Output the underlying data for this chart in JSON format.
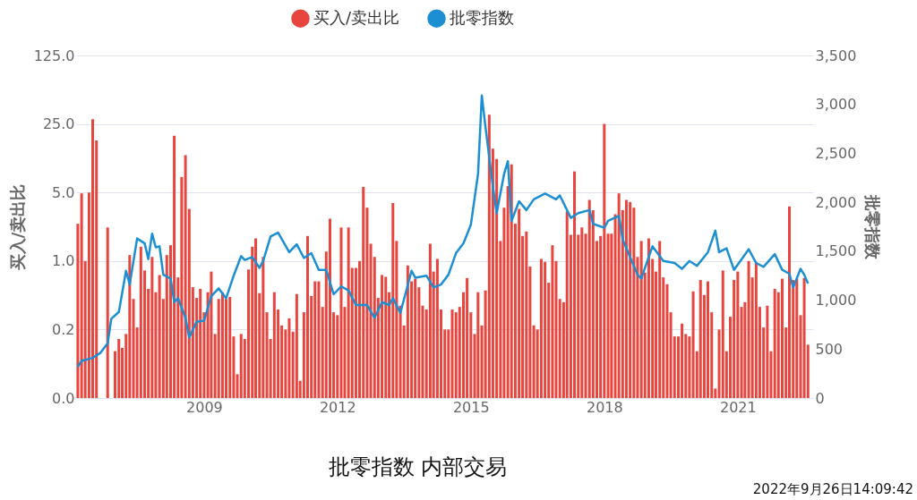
{
  "chart_data": {
    "type": "bar",
    "title": "批零指数 内部交易",
    "annotations": [
      "2022年9月26日14:09:42"
    ],
    "ylabel": "买入/卖出比",
    "y2label": "批零指数",
    "log": "y",
    "grid": "y",
    "legend": "top",
    "xlim": [
      "2006-02-15",
      "2022-09-12"
    ],
    "xticks": [
      "2009",
      "2012",
      "2015",
      "2018",
      "2021"
    ],
    "ylim": [
      0.04,
      125
    ],
    "yticks": [
      {
        "value": 0.04,
        "label": "0.0"
      },
      0.2,
      {
        "value": 1,
        "label": "1.0"
      },
      {
        "value": 5,
        "label": "5.0"
      },
      {
        "value": 25,
        "label": "25.0"
      },
      {
        "value": 125,
        "label": "125.0"
      }
    ],
    "y2lim": [
      0,
      3500
    ],
    "y2ticks": [
      0,
      500,
      {
        "value": 1000,
        "label": "1,000"
      },
      {
        "value": 1500,
        "label": "1,500"
      },
      {
        "value": 2000,
        "label": "2,000"
      },
      {
        "value": 2500,
        "label": "2,500"
      },
      {
        "value": 3000,
        "label": "3,000"
      },
      {
        "value": 3500,
        "label": "3,500"
      }
    ],
    "x": [
      "2006-03",
      "2006-04",
      "2006-05",
      "2006-06",
      "2006-07",
      "2006-08",
      "2006-09",
      "2006-10",
      "2006-11",
      "2006-12",
      "2007-01",
      "2007-02",
      "2007-03",
      "2007-04",
      "2007-05",
      "2007-06",
      "2007-07",
      "2007-08",
      "2007-09",
      "2007-10",
      "2007-11",
      "2007-12",
      "2008-01",
      "2008-02",
      "2008-03",
      "2008-04",
      "2008-05",
      "2008-06",
      "2008-07",
      "2008-08",
      "2008-09",
      "2008-10",
      "2008-11",
      "2008-12",
      "2009-01",
      "2009-02",
      "2009-03",
      "2009-04",
      "2009-05",
      "2009-06",
      "2009-07",
      "2009-08",
      "2009-09",
      "2009-10",
      "2009-11",
      "2009-12",
      "2010-01",
      "2010-02",
      "2010-03",
      "2010-04",
      "2010-05",
      "2010-06",
      "2010-07",
      "2010-08",
      "2010-09",
      "2010-10",
      "2010-11",
      "2010-12",
      "2011-01",
      "2011-02",
      "2011-03",
      "2011-04",
      "2011-05",
      "2011-06",
      "2011-07",
      "2011-08",
      "2011-09",
      "2011-10",
      "2011-11",
      "2011-12",
      "2012-01",
      "2012-02",
      "2012-03",
      "2012-04",
      "2012-05",
      "2012-06",
      "2012-07",
      "2012-08",
      "2012-09",
      "2012-10",
      "2012-11",
      "2012-12",
      "2013-01",
      "2013-02",
      "2013-03",
      "2013-04",
      "2013-05",
      "2013-06",
      "2013-07",
      "2013-08",
      "2013-09",
      "2013-10",
      "2013-11",
      "2013-12",
      "2014-01",
      "2014-02",
      "2014-03",
      "2014-04",
      "2014-05",
      "2014-06",
      "2014-07",
      "2014-08",
      "2014-09",
      "2014-10",
      "2014-11",
      "2014-12",
      "2015-01",
      "2015-02",
      "2015-03",
      "2015-04",
      "2015-05",
      "2015-06",
      "2015-07",
      "2015-08",
      "2015-09",
      "2015-10",
      "2015-11",
      "2015-12",
      "2016-01",
      "2016-02",
      "2016-03",
      "2016-04",
      "2016-05",
      "2016-06",
      "2016-07",
      "2016-08",
      "2016-09",
      "2016-10",
      "2016-11",
      "2016-12",
      "2017-01",
      "2017-02",
      "2017-03",
      "2017-04",
      "2017-05",
      "2017-06",
      "2017-07",
      "2017-08",
      "2017-09",
      "2017-10",
      "2017-11",
      "2017-12",
      "2018-01",
      "2018-02",
      "2018-03",
      "2018-04",
      "2018-05",
      "2018-06",
      "2018-07",
      "2018-08",
      "2018-09",
      "2018-10",
      "2018-11",
      "2018-12",
      "2019-01",
      "2019-02",
      "2019-03",
      "2019-04",
      "2019-05",
      "2019-06",
      "2019-07",
      "2019-08",
      "2019-09",
      "2019-10",
      "2019-11",
      "2019-12",
      "2020-01",
      "2020-02",
      "2020-03",
      "2020-04",
      "2020-05",
      "2020-06",
      "2020-07",
      "2020-08",
      "2020-09",
      "2020-10",
      "2020-11",
      "2020-12",
      "2021-01",
      "2021-02",
      "2021-03",
      "2021-04",
      "2021-05",
      "2021-06",
      "2021-07",
      "2021-08",
      "2021-09",
      "2021-10",
      "2021-11",
      "2021-12",
      "2022-01",
      "2022-02",
      "2022-03",
      "2022-04",
      "2022-05",
      "2022-06",
      "2022-07",
      "2022-08"
    ],
    "series": [
      {
        "name": "买入/卖出比",
        "color": "#e8453e",
        "values": [
          2.4,
          4.9,
          1.0,
          5.0,
          28,
          17,
          null,
          null,
          2.2,
          null,
          0.12,
          0.16,
          0.13,
          0.18,
          1.15,
          0.41,
          0.21,
          1.4,
          0.8,
          0.52,
          1.1,
          0.48,
          0.72,
          0.41,
          1.15,
          1.45,
          19,
          0.68,
          7.2,
          12,
          3.4,
          0.54,
          0.42,
          0.52,
          0.3,
          0.48,
          0.78,
          0.18,
          0.41,
          0.48,
          0.41,
          0.43,
          0.17,
          0.07,
          0.18,
          0.16,
          0.82,
          1.4,
          1.7,
          0.47,
          1.1,
          0.3,
          0.16,
          0.48,
          0.32,
          0.22,
          0.2,
          0.26,
          0.19,
          0.46,
          0.06,
          0.3,
          1.8,
          0.44,
          0.62,
          0.62,
          0.34,
          1.25,
          2.7,
          0.3,
          0.28,
          2.2,
          0.34,
          2.2,
          0.85,
          0.85,
          1.0,
          5.7,
          3.5,
          1.5,
          1.1,
          0.42,
          0.72,
          0.69,
          0.48,
          3.9,
          1.6,
          0.35,
          0.22,
          0.9,
          0.62,
          0.66,
          0.54,
          0.35,
          0.32,
          1.5,
          0.78,
          1.05,
          0.32,
          0.2,
          0.2,
          0.32,
          0.3,
          0.34,
          0.48,
          0.67,
          0.3,
          0.18,
          0.48,
          0.22,
          0.5,
          31,
          14,
          11,
          1.6,
          3.5,
          5.8,
          9.7,
          2.4,
          3.4,
          1.8,
          2.0,
          0.88,
          0.22,
          0.2,
          1.05,
          0.98,
          0.6,
          1.45,
          1.0,
          0.41,
          0.38,
          3.2,
          1.85,
          8.2,
          1.85,
          2.2,
          1.9,
          4.2,
          3.3,
          1.6,
          1.8,
          25,
          1.9,
          1.9,
          3.0,
          4.9,
          3.3,
          4.2,
          4.0,
          3.5,
          1.1,
          1.6,
          0.76,
          1.7,
          1.05,
          0.78,
          1.6,
          0.68,
          0.58,
          0.3,
          0.17,
          0.17,
          0.23,
          0.18,
          0.17,
          0.49,
          0.12,
          0.64,
          0.45,
          0.62,
          0.3,
          0.05,
          0.2,
          0.8,
          0.12,
          0.27,
          0.64,
          0.78,
          0.34,
          0.38,
          1.0,
          0.68,
          0.97,
          0.34,
          0.21,
          0.35,
          0.12,
          0.52,
          0.48,
          0.66,
          0.21,
          3.6,
          0.64,
          0.66,
          0.28,
          0.67,
          0.14
        ]
      },
      {
        "name": "批零指数",
        "type": "line",
        "axis": "y2",
        "color": "#1b8fd2",
        "x": [
          "2006-03",
          "2006-04",
          "2006-07",
          "2006-09",
          "2006-11",
          "2006-12",
          "2007-02",
          "2007-04",
          "2007-05",
          "2007-07",
          "2007-09",
          "2007-10",
          "2007-11",
          "2007-12",
          "2008-01",
          "2008-02",
          "2008-04",
          "2008-05",
          "2008-06",
          "2008-08",
          "2008-09",
          "2008-11",
          "2009-01",
          "2009-03",
          "2009-05",
          "2009-07",
          "2009-09",
          "2009-11",
          "2009-12",
          "2010-02",
          "2010-04",
          "2010-05",
          "2010-07",
          "2010-09",
          "2010-12",
          "2011-02",
          "2011-04",
          "2011-06",
          "2011-08",
          "2011-10",
          "2011-12",
          "2012-02",
          "2012-04",
          "2012-06",
          "2012-09",
          "2012-11",
          "2013-01",
          "2013-03",
          "2013-04",
          "2013-06",
          "2013-09",
          "2013-10",
          "2014-01",
          "2014-03",
          "2014-05",
          "2014-07",
          "2014-09",
          "2014-11",
          "2015-01",
          "2015-03",
          "2015-04",
          "2015-05",
          "2015-07",
          "2015-08",
          "2015-10",
          "2015-11",
          "2015-12",
          "2016-02",
          "2016-04",
          "2016-06",
          "2016-09",
          "2016-12",
          "2017-01",
          "2017-04",
          "2017-06",
          "2017-09",
          "2017-10",
          "2018-01",
          "2018-02",
          "2018-05",
          "2018-06",
          "2018-10",
          "2018-11",
          "2018-12",
          "2019-02",
          "2019-05",
          "2019-08",
          "2019-10",
          "2019-12",
          "2020-02",
          "2020-05",
          "2020-07",
          "2020-08",
          "2020-10",
          "2020-12",
          "2021-04",
          "2021-06",
          "2021-08",
          "2021-11",
          "2022-01",
          "2022-03",
          "2022-04",
          "2022-06",
          "2022-07",
          "2022-08"
        ],
        "values": [
          320,
          380,
          410,
          460,
          560,
          810,
          880,
          1300,
          1160,
          1630,
          1580,
          1420,
          1680,
          1540,
          1550,
          1260,
          1220,
          980,
          1020,
          820,
          620,
          780,
          790,
          1040,
          1120,
          1020,
          1250,
          1450,
          1410,
          1440,
          1330,
          1400,
          1650,
          1690,
          1490,
          1570,
          1430,
          1480,
          1310,
          1310,
          1060,
          1140,
          1100,
          950,
          950,
          820,
          980,
          950,
          1020,
          870,
          1300,
          1230,
          1250,
          1130,
          1160,
          1260,
          1480,
          1580,
          1770,
          2290,
          3090,
          2770,
          2160,
          1890,
          2290,
          2420,
          1810,
          2010,
          1920,
          2030,
          2090,
          2030,
          2070,
          1840,
          1890,
          1920,
          1780,
          1740,
          1810,
          1860,
          1620,
          1260,
          1220,
          1330,
          1550,
          1400,
          1380,
          1320,
          1400,
          1350,
          1490,
          1710,
          1490,
          1530,
          1310,
          1520,
          1380,
          1340,
          1470,
          1310,
          1270,
          1130,
          1320,
          1260,
          1170
        ]
      }
    ]
  }
}
